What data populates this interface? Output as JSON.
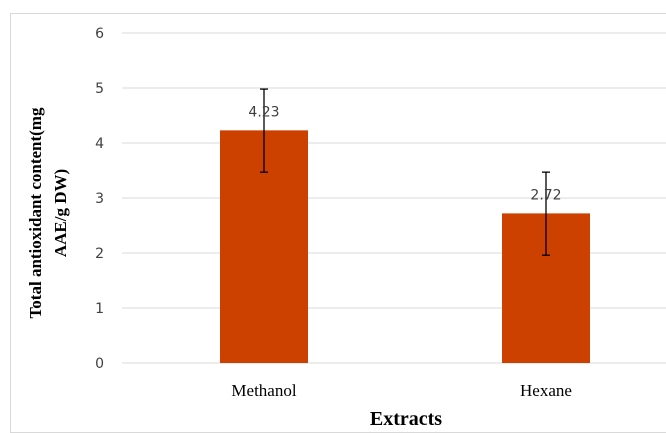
{
  "chart_data": {
    "type": "bar",
    "categories": [
      "Methanol",
      "Hexane"
    ],
    "values": [
      4.23,
      2.72
    ],
    "data_labels": [
      "4.23",
      "2.72"
    ],
    "error_bars": [
      {
        "low": 3.47,
        "high": 4.98
      },
      {
        "low": 1.96,
        "high": 3.47
      }
    ],
    "y_ticks": [
      "0",
      "1",
      "2",
      "3",
      "4",
      "5",
      "6"
    ],
    "ylim": [
      0,
      6
    ],
    "xlabel": "Extracts",
    "ylabel_line1": "Total antioxidant content(mg",
    "ylabel_line2": "AAE/g DW)",
    "grid": true,
    "bar_color": "#cc4100",
    "grid_color": "#d9d9d9",
    "error_color": "#000000"
  }
}
